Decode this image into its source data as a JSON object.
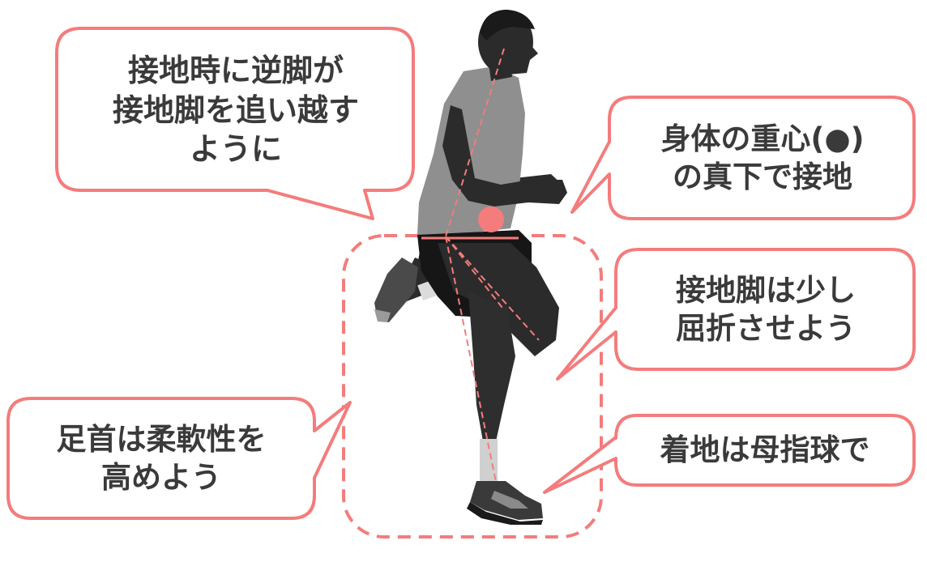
{
  "colors": {
    "accent": "#F47C7C",
    "text": "#3a3a3a",
    "figure_dark": "#2b2b2b",
    "figure_shirt": "#8f8f8f"
  },
  "callouts": [
    {
      "id": "overtake",
      "lines": [
        "接地時に逆脚が",
        "接地脚を追い越す",
        "ように"
      ]
    },
    {
      "id": "cog",
      "lines": [
        "身体の重心(●)",
        "の真下で接地"
      ]
    },
    {
      "id": "knee",
      "lines": [
        "接地脚は少し",
        "屈折させよう"
      ]
    },
    {
      "id": "ankle",
      "lines": [
        "足首は柔軟性を",
        "高めよう"
      ]
    },
    {
      "id": "forefoot",
      "lines": [
        "着地は母指球で"
      ]
    }
  ],
  "center_of_gravity_marker": "●"
}
